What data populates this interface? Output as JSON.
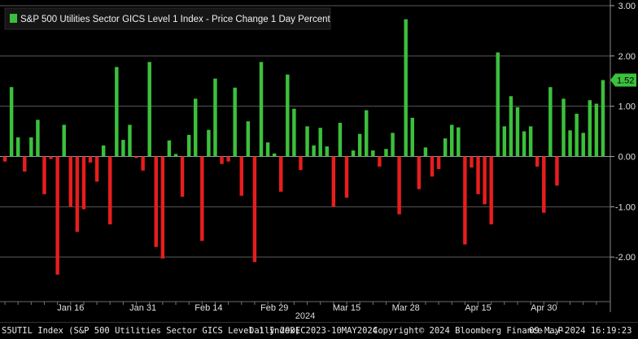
{
  "chart_data": {
    "type": "bar",
    "title": "S&P 500 Utilities Sector GICS Level 1 Index - Price Change 1 Day Percent",
    "legend_color": "#3cc03c",
    "positive_color": "#3cc03c",
    "negative_color": "#e81d1d",
    "ylim": [
      -2.8,
      3.0
    ],
    "yticks": [
      3.0,
      2.0,
      1.0,
      0.0,
      -1.0,
      -2.0
    ],
    "ytick_labels": [
      "3.00",
      "2.00",
      "1.00",
      "0.00",
      "-1.00",
      "-2.00"
    ],
    "x_labels": [
      "Jan 16",
      "Jan 31",
      "Feb 14",
      "Feb 29",
      "Mar 15",
      "Mar 28",
      "Apr 15",
      "Apr 30"
    ],
    "x_label_bar_index": [
      10,
      21,
      31,
      41,
      52,
      61,
      72,
      82
    ],
    "year_label": "2024",
    "last_value_label": "1.52",
    "values": [
      -0.1,
      1.38,
      0.38,
      -0.3,
      0.38,
      0.73,
      -0.75,
      -0.05,
      -2.35,
      0.63,
      -1.0,
      -1.5,
      -1.05,
      -0.12,
      -0.5,
      0.22,
      -1.35,
      1.78,
      0.33,
      0.63,
      -0.03,
      -0.28,
      1.88,
      -1.8,
      -2.03,
      0.32,
      0.05,
      -0.8,
      0.43,
      1.15,
      -1.68,
      0.53,
      1.55,
      -0.15,
      -0.1,
      1.37,
      -0.78,
      0.7,
      -2.1,
      1.88,
      0.28,
      0.06,
      -0.7,
      1.63,
      0.95,
      -0.27,
      0.6,
      0.22,
      0.57,
      0.2,
      -1.0,
      0.67,
      -0.82,
      0.12,
      0.45,
      0.92,
      0.12,
      -0.2,
      0.15,
      0.47,
      -1.15,
      2.73,
      0.77,
      -0.65,
      0.18,
      -0.4,
      -0.25,
      0.36,
      0.63,
      0.58,
      -1.75,
      -0.22,
      -0.75,
      -0.95,
      -1.35,
      2.07,
      0.6,
      1.2,
      0.98,
      0.5,
      0.6,
      -0.2,
      -1.12,
      1.38,
      -0.58,
      1.15,
      0.52,
      0.85,
      0.47,
      1.12,
      1.05,
      1.52
    ]
  },
  "footer": {
    "ticker": "S5UTIL Index (S&P 500 Utilities Sector GICS Level 1 Index)",
    "range": "Daily 29DEC2023-10MAY2024",
    "copyright": "Copyright© 2024 Bloomberg Finance L.P.",
    "timestamp": "09-May-2024 16:19:23"
  }
}
